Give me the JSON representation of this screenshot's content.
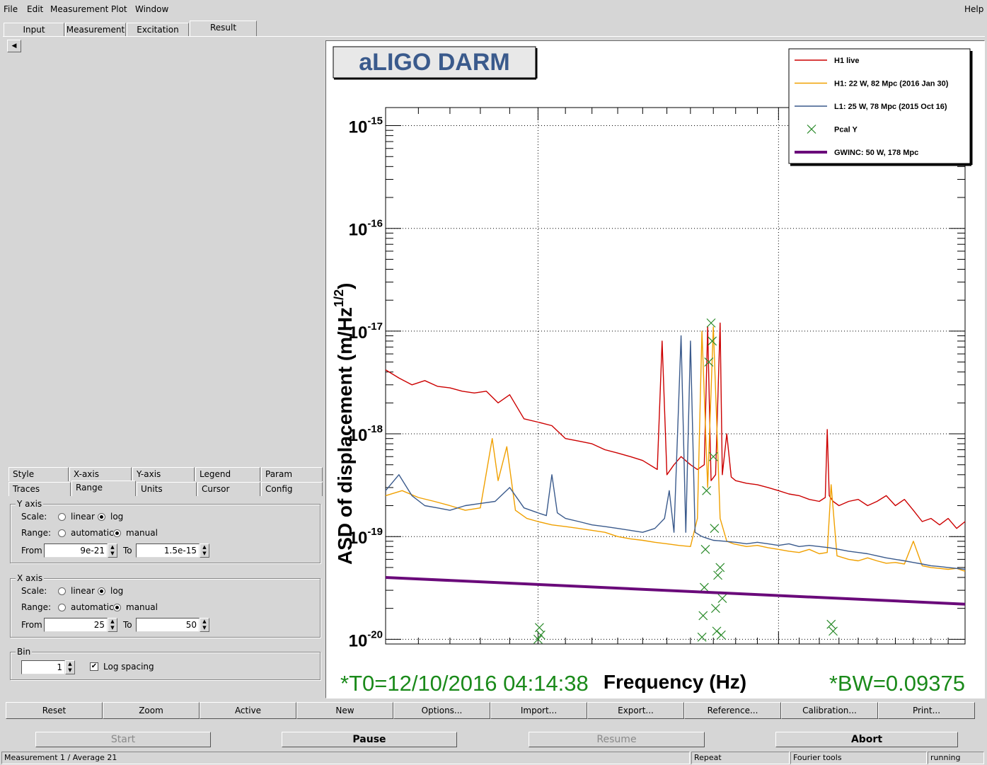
{
  "menubar": {
    "items": [
      "File",
      "Edit",
      "Measurement",
      "Plot",
      "Window"
    ],
    "help": "Help"
  },
  "top_tabs": [
    "Input",
    "Measurement",
    "Excitation",
    "Result"
  ],
  "active_top_tab": "Result",
  "sub_tabs_row1": [
    "Style",
    "X-axis",
    "Y-axis",
    "Legend",
    "Param"
  ],
  "sub_tabs_row2": [
    "Traces",
    "Range",
    "Units",
    "Cursor",
    "Config"
  ],
  "active_sub_tab": "Range",
  "y_axis": {
    "title": "Y axis",
    "scale_label": "Scale:",
    "scale_options": [
      "linear",
      "log"
    ],
    "scale_selected": "log",
    "range_label": "Range:",
    "range_options": [
      "automatic",
      "manual"
    ],
    "range_selected": "manual",
    "from_label": "From",
    "from_value": "9e-21",
    "to_label": "To",
    "to_value": "1.5e-15"
  },
  "x_axis": {
    "title": "X axis",
    "scale_label": "Scale:",
    "scale_options": [
      "linear",
      "log"
    ],
    "scale_selected": "log",
    "range_label": "Range:",
    "range_options": [
      "automatic",
      "manual"
    ],
    "range_selected": "manual",
    "from_label": "From",
    "from_value": "25",
    "to_label": "To",
    "to_value": "50"
  },
  "bin": {
    "title": "Bin",
    "value": "1",
    "log_spacing_label": "Log spacing",
    "log_spacing_checked": true
  },
  "plot": {
    "title": "aLIGO DARM",
    "t0_text": "*T0=12/10/2016 04:14:38",
    "bw_text": "*BW=0.09375"
  },
  "chart_data": {
    "type": "line",
    "title": "aLIGO DARM",
    "xlabel": "Frequency (Hz)",
    "ylabel": "ASD of displacement (m/Hz^1/2)",
    "ylabel_main": "ASD of displacement (m/Hz",
    "ylabel_sup": "1/2",
    "ylabel_close": ")",
    "xscale": "log",
    "yscale": "log",
    "xlim": [
      25,
      50
    ],
    "ylim": [
      9e-21,
      1.5e-15
    ],
    "grid": true,
    "legend_position": "top-right",
    "y_ticks": [
      {
        "value": 1e-15,
        "base": "10",
        "exp": "-15"
      },
      {
        "value": 1e-16,
        "base": "10",
        "exp": "-16"
      },
      {
        "value": 1e-17,
        "base": "10",
        "exp": "-17"
      },
      {
        "value": 1e-18,
        "base": "10",
        "exp": "-18"
      },
      {
        "value": 1e-19,
        "base": "10",
        "exp": "-19"
      },
      {
        "value": 1e-20,
        "base": "10",
        "exp": "-20"
      }
    ],
    "series": [
      {
        "name": "H1 live",
        "color": "#cc0000",
        "style": "line",
        "x": [
          25,
          25.4,
          25.8,
          26.2,
          26.6,
          27.0,
          27.4,
          27.8,
          28.2,
          28.6,
          29.0,
          29.5,
          30.0,
          30.5,
          31.0,
          31.5,
          32.0,
          32.5,
          33.0,
          33.5,
          34.0,
          34.6,
          34.8,
          35.0,
          35.3,
          35.6,
          36.0,
          36.3,
          36.6,
          36.75,
          36.9,
          37.1,
          37.3,
          37.4,
          37.6,
          37.8,
          38.0,
          38.5,
          39.0,
          39.5,
          40.0,
          40.5,
          41.0,
          41.5,
          42.0,
          42.3,
          42.4,
          42.5,
          42.7,
          43.0,
          43.5,
          44.0,
          44.5,
          45.0,
          45.5,
          46.0,
          46.5,
          47.0,
          47.5,
          48.0,
          48.5,
          49.0,
          49.5,
          50.0
        ],
        "y": [
          4.2e-18,
          3.5e-18,
          3e-18,
          3.3e-18,
          2.9e-18,
          2.8e-18,
          2.6e-18,
          2.5e-18,
          2.6e-18,
          2e-18,
          2.4e-18,
          1.4e-18,
          1.3e-18,
          1.2e-18,
          9e-19,
          8.5e-19,
          8e-19,
          7e-19,
          6.5e-19,
          6e-19,
          5.5e-19,
          4.5e-19,
          8e-18,
          4e-19,
          5e-19,
          6e-19,
          5e-19,
          4.5e-19,
          5e-19,
          1.1e-17,
          3.5e-19,
          4e-19,
          1.2e-17,
          4e-19,
          1e-18,
          3.8e-19,
          3.5e-19,
          3.3e-19,
          3.2e-19,
          3e-19,
          2.8e-19,
          2.6e-19,
          2.5e-19,
          2.3e-19,
          2.2e-19,
          2.4e-19,
          1.1e-18,
          2.5e-19,
          2.2e-19,
          2e-19,
          2.2e-19,
          2.3e-19,
          2e-19,
          2.2e-19,
          2.5e-19,
          2e-19,
          2.3e-19,
          1.8e-19,
          1.4e-19,
          1.5e-19,
          1.3e-19,
          1.5e-19,
          1.2e-19,
          1.4e-19
        ]
      },
      {
        "name": "H1: 22 W, 82 Mpc (2016 Jan 30)",
        "color": "#f0a000",
        "style": "line",
        "x": [
          25,
          25.5,
          26.0,
          26.5,
          27.0,
          27.5,
          28.0,
          28.4,
          28.6,
          28.9,
          29.2,
          29.6,
          30.0,
          30.5,
          31.0,
          31.5,
          32.0,
          32.5,
          33.0,
          33.5,
          34.0,
          34.5,
          35.0,
          35.5,
          36.0,
          36.3,
          36.5,
          36.75,
          37.0,
          37.3,
          37.6,
          37.9,
          38.5,
          39.0,
          39.5,
          40.0,
          40.5,
          41.0,
          41.5,
          42.0,
          42.4,
          42.6,
          42.9,
          43.5,
          44.0,
          44.5,
          45.0,
          45.5,
          46.0,
          46.5,
          47.0,
          47.5,
          48.0,
          48.5,
          49.0,
          49.5,
          50.0
        ],
        "y": [
          2.5e-19,
          2.8e-19,
          2.4e-19,
          2.2e-19,
          2e-19,
          1.8e-19,
          1.9e-19,
          9e-19,
          3.5e-19,
          7.5e-19,
          1.8e-19,
          1.5e-19,
          1.4e-19,
          1.3e-19,
          1.25e-19,
          1.2e-19,
          1.15e-19,
          1.1e-19,
          1e-19,
          9.5e-20,
          9.2e-20,
          8.8e-20,
          8.5e-20,
          8.2e-20,
          8e-20,
          1.5e-19,
          1e-17,
          3e-19,
          1.1e-17,
          1.5e-19,
          9e-20,
          8.5e-20,
          8e-20,
          8.2e-20,
          7.8e-20,
          7.5e-20,
          7.2e-20,
          7e-20,
          7.5e-20,
          6.8e-20,
          7e-20,
          3.2e-19,
          6.5e-20,
          6e-20,
          5.8e-20,
          6.2e-20,
          5.8e-20,
          5.5e-20,
          5.6e-20,
          5.4e-20,
          9e-20,
          5.2e-20,
          5e-20,
          4.9e-20,
          4.8e-20,
          4.9e-20,
          4.6e-20
        ]
      },
      {
        "name": "L1: 25 W, 78 Mpc (2015 Oct 16)",
        "color": "#3a5a8c",
        "style": "line",
        "x": [
          25,
          25.4,
          25.8,
          26.2,
          26.6,
          27.0,
          27.5,
          28.0,
          28.5,
          29.0,
          29.5,
          30.0,
          30.3,
          30.5,
          30.7,
          31.0,
          31.5,
          32.0,
          32.5,
          33.0,
          33.5,
          34.0,
          34.5,
          34.9,
          35.1,
          35.3,
          35.6,
          35.8,
          36.0,
          36.2,
          36.5,
          36.8,
          37.0,
          37.5,
          38.0,
          38.5,
          39.0,
          39.5,
          40.0,
          40.5,
          41.0,
          41.5,
          42.0,
          42.5,
          43.0,
          43.5,
          44.0,
          44.5,
          45.0,
          45.5,
          46.0,
          46.5,
          47.0,
          47.5,
          48.0,
          48.5,
          49.0,
          49.5,
          50.0
        ],
        "y": [
          2.8e-19,
          4e-19,
          2.5e-19,
          2e-19,
          1.9e-19,
          1.8e-19,
          2e-19,
          2.1e-19,
          2.2e-19,
          3e-19,
          1.9e-19,
          1.7e-19,
          1.6e-19,
          4e-19,
          1.7e-19,
          1.5e-19,
          1.4e-19,
          1.3e-19,
          1.25e-19,
          1.2e-19,
          1.15e-19,
          1.1e-19,
          1.2e-19,
          1.5e-19,
          2.8e-19,
          1.1e-19,
          9e-18,
          1.1e-19,
          8e-18,
          1.1e-19,
          1e-19,
          9.5e-20,
          9.2e-20,
          9e-20,
          8.8e-20,
          8.5e-20,
          8.8e-20,
          8.5e-20,
          8.2e-20,
          8.5e-20,
          8e-20,
          8.2e-20,
          8e-20,
          7.8e-20,
          7.5e-20,
          7.2e-20,
          7e-20,
          6.8e-20,
          6.5e-20,
          6.2e-20,
          6e-20,
          5.8e-20,
          5.6e-20,
          5.4e-20,
          5.2e-20,
          5.1e-20,
          5e-20,
          4.9e-20,
          4.8e-20
        ]
      },
      {
        "name": "Pcal Y",
        "color": "#2a8a2a",
        "style": "marker",
        "x": [
          30.0,
          30.05,
          30.1,
          36.5,
          36.55,
          36.6,
          36.65,
          36.7,
          36.8,
          36.9,
          36.95,
          37.0,
          37.05,
          37.1,
          37.15,
          37.2,
          37.3,
          37.35,
          37.4,
          42.6,
          42.7
        ],
        "y": [
          1e-20,
          1.3e-20,
          1.1e-20,
          1.05e-20,
          1.7e-20,
          3.2e-20,
          7.5e-20,
          2.8e-19,
          5e-18,
          1.2e-17,
          8e-18,
          6e-19,
          1.2e-19,
          2e-20,
          1.2e-20,
          4.2e-20,
          5e-20,
          1.1e-20,
          2.5e-20,
          1.4e-20,
          1.2e-20
        ]
      },
      {
        "name": "GWINC: 50 W, 178 Mpc",
        "color": "#6a0a7a",
        "style": "thick",
        "x": [
          25,
          50
        ],
        "y": [
          4e-20,
          2.2e-20
        ]
      }
    ]
  },
  "plot_buttons": [
    "Reset",
    "Zoom",
    "Active",
    "New",
    "Options...",
    "Import...",
    "Export...",
    "Reference...",
    "Calibration...",
    "Print..."
  ],
  "control_buttons": [
    "Start",
    "Pause",
    "Resume",
    "Abort"
  ],
  "status": {
    "left": "Measurement 1 / Average 21",
    "repeat": "Repeat",
    "tools": "Fourier tools",
    "state": "running"
  }
}
